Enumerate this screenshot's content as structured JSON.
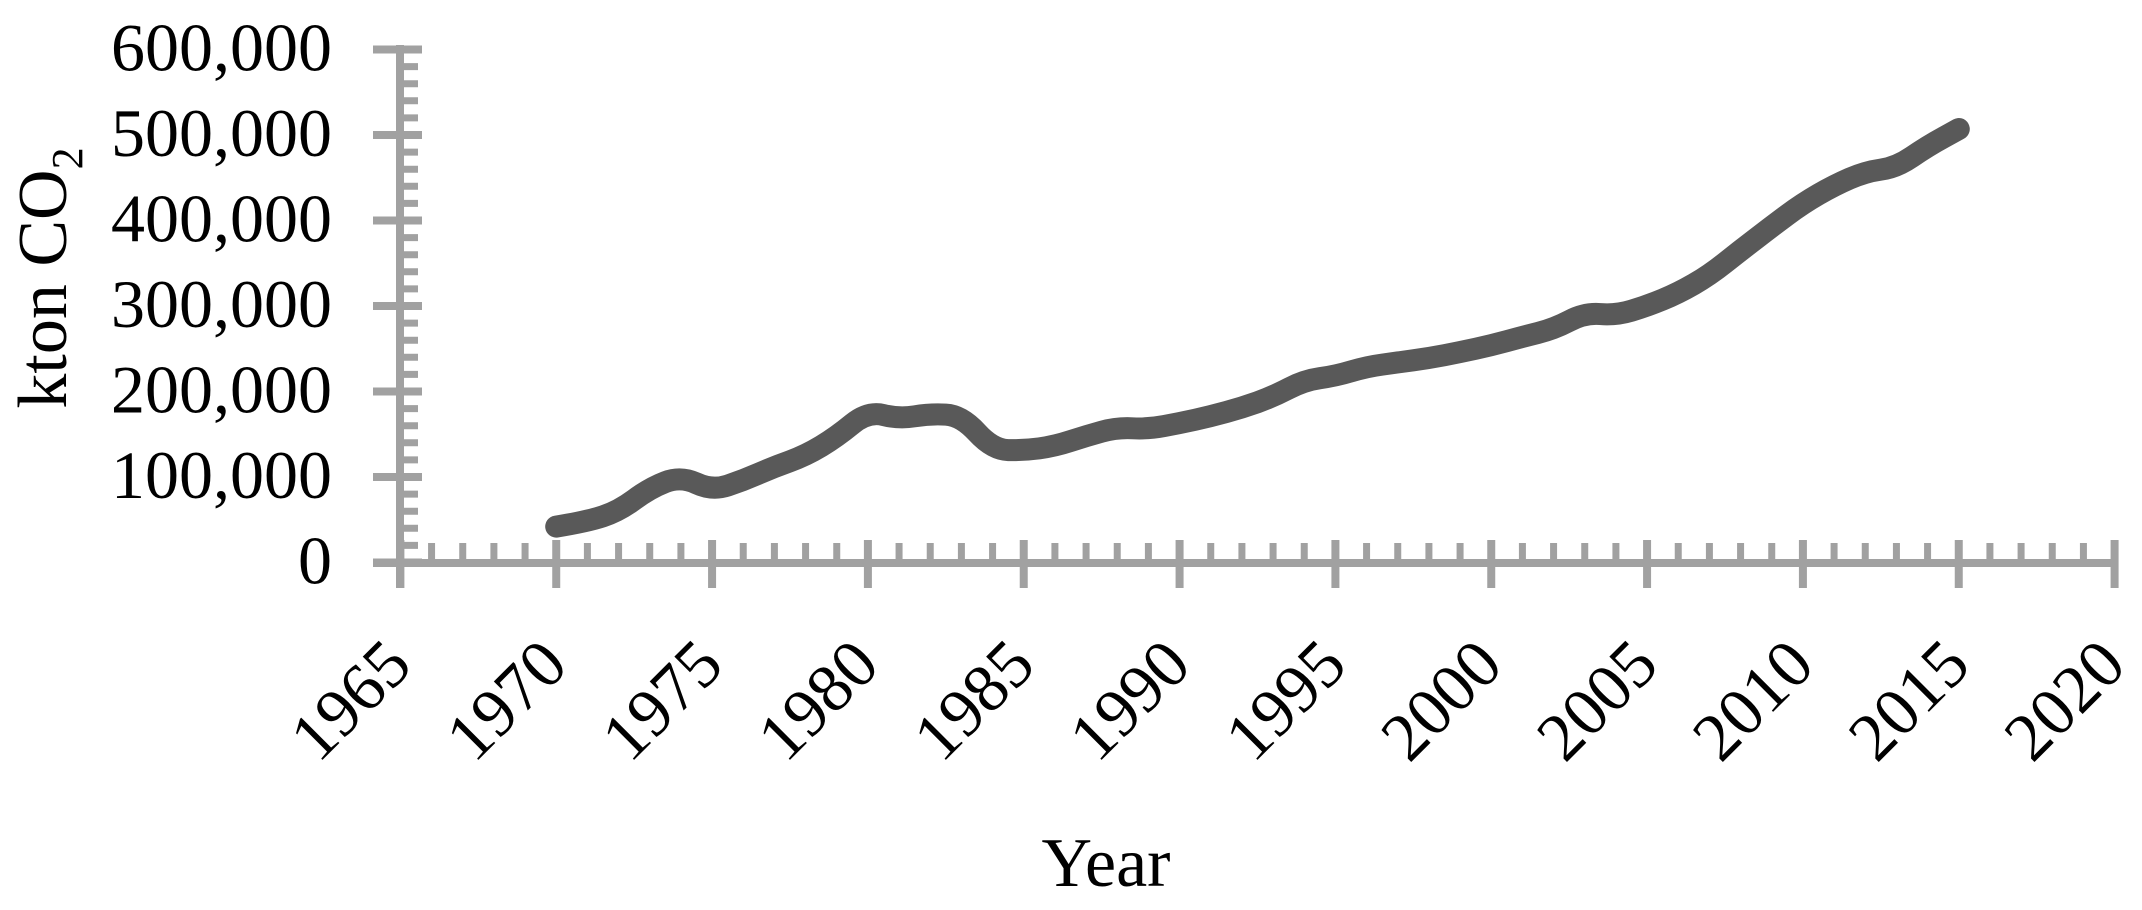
{
  "figure": {
    "y_axis_title": "kton CO",
    "y_axis_title_sub": "2",
    "x_axis_title": "Year"
  },
  "chart_data": {
    "type": "line",
    "title": "",
    "xlabel": "Year",
    "ylabel": "kton CO2",
    "grid": "off",
    "legend": "none",
    "x_range": [
      1965,
      2020
    ],
    "y_range": [
      0,
      600000
    ],
    "x_major_unit": 5,
    "x_minor_unit": 1,
    "y_major_unit": 100000,
    "y_minor_unit": 20000,
    "x_tick_labels": [
      "1965",
      "1970",
      "1975",
      "1980",
      "1985",
      "1990",
      "1995",
      "2000",
      "2005",
      "2010",
      "2015",
      "2020"
    ],
    "y_tick_labels": [
      "0",
      "100,000",
      "200,000",
      "300,000",
      "400,000",
      "500,000",
      "600,000"
    ],
    "series": [
      {
        "x": [
          1970,
          1971,
          1972,
          1973,
          1974,
          1975,
          1976,
          1977,
          1978,
          1979,
          1980,
          1981,
          1982,
          1983,
          1984,
          1985,
          1986,
          1987,
          1988,
          1989,
          1990,
          1991,
          1992,
          1993,
          1994,
          1995,
          1996,
          1997,
          1998,
          1999,
          2000,
          2001,
          2002,
          2003,
          2004,
          2005,
          2006,
          2007,
          2008,
          2009,
          2010,
          2011,
          2012,
          2013,
          2014,
          2015
        ],
        "values": [
          42000,
          48000,
          60000,
          87000,
          101000,
          84000,
          96000,
          112000,
          125000,
          147000,
          177000,
          168000,
          174000,
          172000,
          132000,
          131000,
          136000,
          148000,
          158000,
          156000,
          163000,
          171000,
          181000,
          194000,
          213000,
          218000,
          229000,
          234000,
          239000,
          246000,
          254000,
          264000,
          273000,
          292000,
          289000,
          300000,
          315000,
          336000,
          365000,
          393000,
          420000,
          441000,
          457000,
          462000,
          487000,
          507000
        ]
      }
    ],
    "colors": {
      "line": "#595959",
      "axis": "#a1a1a1",
      "text": "#000000",
      "background": "#ffffff"
    }
  }
}
